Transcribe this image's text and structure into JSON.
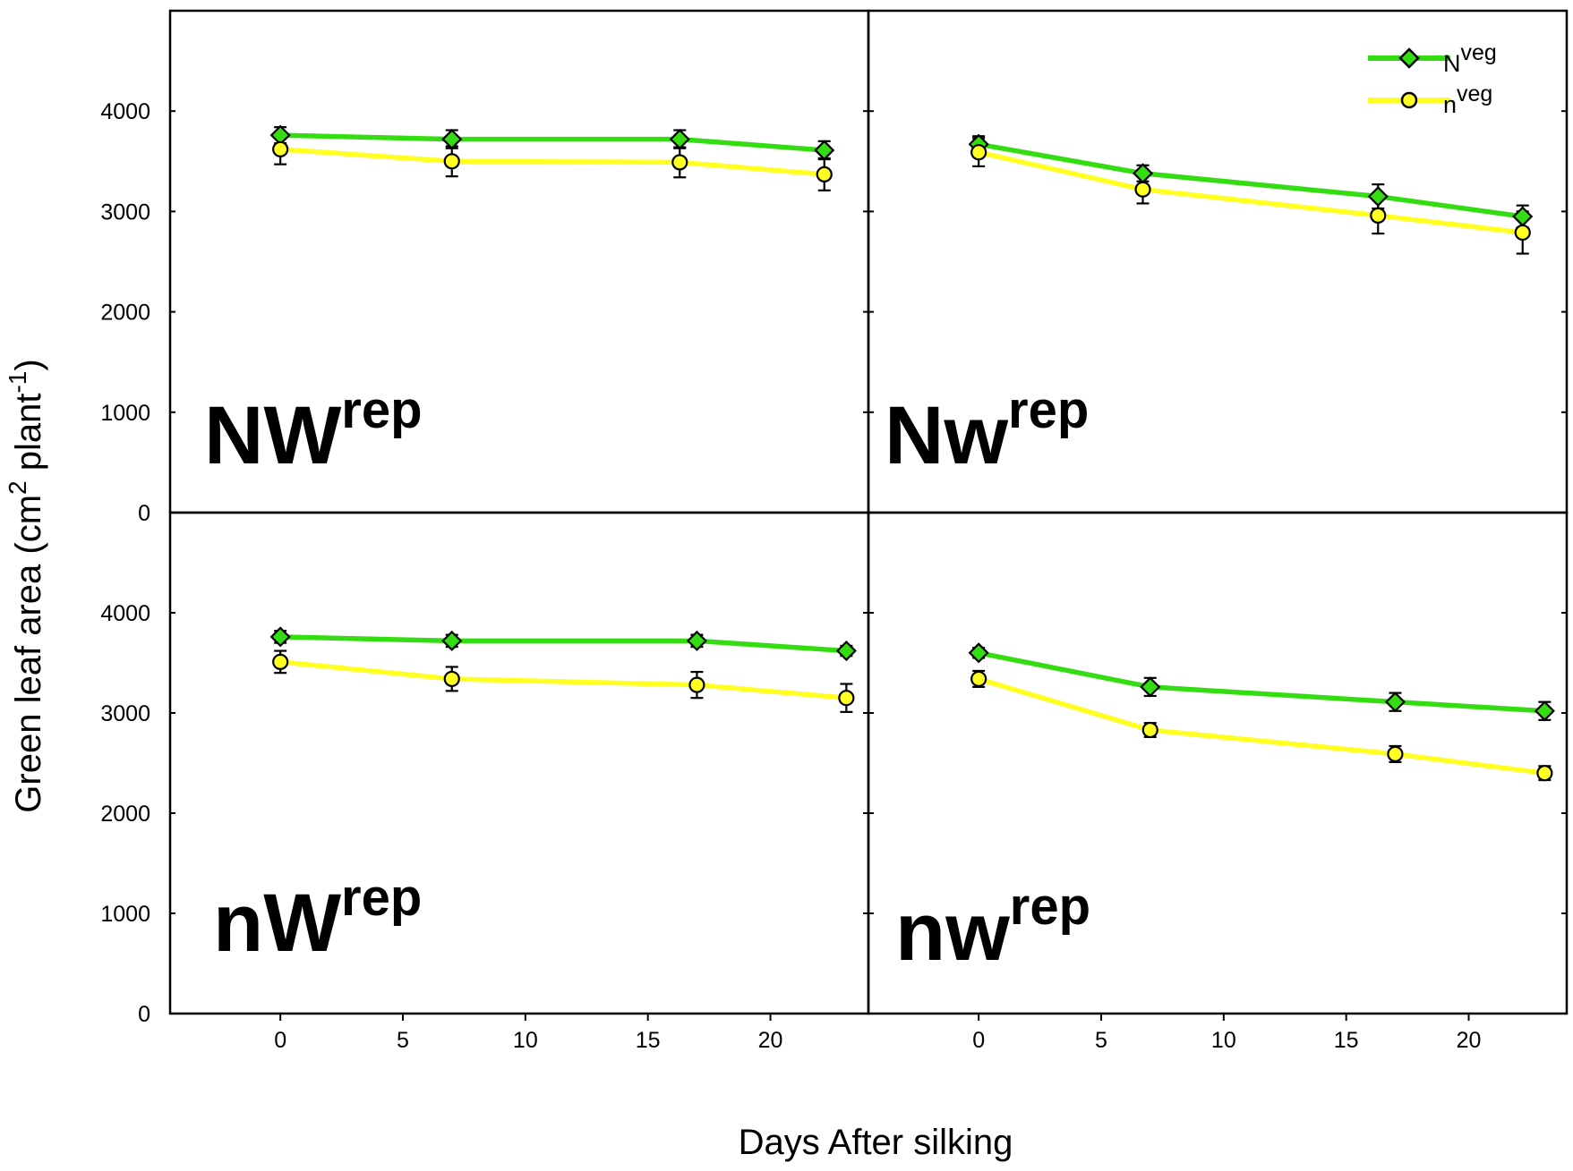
{
  "chart_data": [
    {
      "type": "line",
      "panel": "NWrep",
      "panel_label": "NW",
      "panel_label_sup": "rep",
      "xlim": [
        -4.5,
        24
      ],
      "ylim": [
        0,
        5000
      ],
      "series": [
        {
          "name": "Nveg",
          "color": "#33dd11",
          "marker": "diamond",
          "x": [
            0,
            7,
            16.3,
            22.2
          ],
          "values": [
            3760,
            3720,
            3720,
            3610
          ],
          "err": [
            80,
            90,
            90,
            90
          ]
        },
        {
          "name": "nveg",
          "color": "#ffff22",
          "marker": "circle",
          "x": [
            0,
            7,
            16.3,
            22.2
          ],
          "values": [
            3620,
            3500,
            3490,
            3370
          ],
          "err": [
            150,
            150,
            150,
            160
          ]
        }
      ]
    },
    {
      "type": "line",
      "panel": "Nwrep",
      "panel_label": "Nw",
      "panel_label_sup": "rep",
      "xlim": [
        -4.5,
        24
      ],
      "ylim": [
        0,
        5000
      ],
      "series": [
        {
          "name": "Nveg",
          "color": "#33dd11",
          "marker": "diamond",
          "x": [
            0,
            6.7,
            16.3,
            22.2
          ],
          "values": [
            3670,
            3380,
            3150,
            2950
          ],
          "err": [
            80,
            80,
            120,
            110
          ]
        },
        {
          "name": "nveg",
          "color": "#ffff22",
          "marker": "circle",
          "x": [
            0,
            6.7,
            16.3,
            22.2
          ],
          "values": [
            3590,
            3220,
            2960,
            2790
          ],
          "err": [
            140,
            140,
            180,
            210
          ]
        }
      ]
    },
    {
      "type": "line",
      "panel": "nWrep",
      "panel_label": "nW",
      "panel_label_sup": "rep",
      "xlim": [
        -4.5,
        24
      ],
      "ylim": [
        0,
        5000
      ],
      "series": [
        {
          "name": "Nveg",
          "color": "#33dd11",
          "marker": "diamond",
          "x": [
            0,
            7,
            17,
            23.1
          ],
          "values": [
            3760,
            3720,
            3720,
            3620
          ],
          "err": [
            60,
            60,
            60,
            50
          ]
        },
        {
          "name": "nveg",
          "color": "#ffff22",
          "marker": "circle",
          "x": [
            0,
            7,
            17,
            23.1
          ],
          "values": [
            3510,
            3340,
            3280,
            3150
          ],
          "err": [
            110,
            120,
            130,
            140
          ]
        }
      ]
    },
    {
      "type": "line",
      "panel": "nwrep",
      "panel_label": "nw",
      "panel_label_sup": "rep",
      "xlim": [
        -4.5,
        24
      ],
      "ylim": [
        0,
        5000
      ],
      "series": [
        {
          "name": "Nveg",
          "color": "#33dd11",
          "marker": "diamond",
          "x": [
            0,
            7,
            17,
            23.1
          ],
          "values": [
            3600,
            3260,
            3110,
            3020
          ],
          "err": [
            50,
            90,
            90,
            90
          ]
        },
        {
          "name": "nveg",
          "color": "#ffff22",
          "marker": "circle",
          "x": [
            0,
            7,
            17,
            23.1
          ],
          "values": [
            3340,
            2830,
            2590,
            2400
          ],
          "err": [
            80,
            70,
            80,
            70
          ]
        }
      ]
    }
  ],
  "axes": {
    "ylabel": "Green leaf area (cm",
    "ylabel_sup1": "2",
    "ylabel_mid": " plant",
    "ylabel_sup2": "-1",
    "ylabel_end": ")",
    "xlabel": "Days After silking",
    "y_ticks": [
      "0",
      "1000",
      "2000",
      "3000",
      "4000"
    ],
    "x_ticks": [
      "0",
      "5",
      "10",
      "15",
      "20"
    ]
  },
  "legend": {
    "items": [
      {
        "label": "N",
        "sup": "veg",
        "color": "#33dd11",
        "marker": "diamond"
      },
      {
        "label": "n",
        "sup": "veg",
        "color": "#ffff22",
        "marker": "circle"
      }
    ]
  }
}
